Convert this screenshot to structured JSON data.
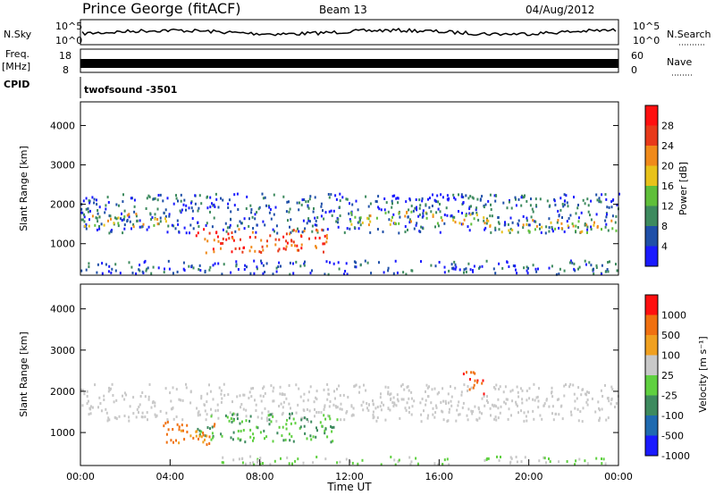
{
  "header": {
    "station": "Prince George (fitACF)",
    "beam": "Beam 13",
    "date": "04/Aug/2012"
  },
  "top_panels": {
    "nsky_label": "N.Sky",
    "nsky_ticks": [
      "10^5",
      "10^0"
    ],
    "nsearch_label": "N.Search",
    "nsearch_ticks": [
      "10^5",
      "10^0"
    ],
    "freq_label": "Freq.",
    "freq_unit": "[MHz]",
    "freq_ticks": [
      "18",
      "8"
    ],
    "nave_label": "Nave",
    "nave_ticks": [
      "60",
      "0"
    ],
    "cpid_label": "CPID",
    "cpid_value": "twofsound -3501"
  },
  "chart_data": [
    {
      "type": "heatmap",
      "panel": "power",
      "ylabel": "Slant Range [km]",
      "ytick_labels": [
        "1000",
        "2000",
        "3000",
        "4000"
      ],
      "ylim": [
        200,
        4600
      ],
      "xlim_hours": [
        0,
        24
      ],
      "colorbar_label": "Power [dB]",
      "colorbar_ticks": [
        "4",
        "8",
        "12",
        "16",
        "20",
        "24",
        "28"
      ],
      "colorbar_colors": [
        "#1a1aff",
        "#1f4fa8",
        "#3d8a5e",
        "#5fbf3a",
        "#e8c21a",
        "#f08a1a",
        "#e83a1a",
        "#ff1010"
      ],
      "regions": [
        {
          "t0": 0,
          "t1": 24,
          "r0": 1300,
          "r1": 2300,
          "level": "low"
        },
        {
          "t0": 0,
          "t1": 4,
          "r0": 1450,
          "r1": 1800,
          "level": "mid"
        },
        {
          "t0": 5,
          "t1": 11,
          "r0": 800,
          "r1": 1400,
          "level": "high"
        },
        {
          "t0": 12,
          "t1": 18,
          "r0": 1500,
          "r1": 1850,
          "level": "mid"
        },
        {
          "t0": 18,
          "t1": 24,
          "r0": 1300,
          "r1": 1650,
          "level": "mid"
        },
        {
          "t0": 0,
          "t1": 24,
          "r0": 250,
          "r1": 600,
          "level": "low"
        }
      ]
    },
    {
      "type": "heatmap",
      "panel": "velocity",
      "ylabel": "Slant Range [km]",
      "ytick_labels": [
        "1000",
        "2000",
        "3000",
        "4000"
      ],
      "ylim": [
        200,
        4600
      ],
      "xlim_hours": [
        0,
        24
      ],
      "xlabel": "Time UT",
      "xtick_labels": [
        "00:00",
        "04:00",
        "08:00",
        "12:00",
        "16:00",
        "20:00",
        "00:00"
      ],
      "colorbar_label": "Velocity [m s⁻¹]",
      "colorbar_ticks": [
        "1000",
        "500",
        "100",
        "25",
        "-25",
        "-100",
        "-500",
        "-1000"
      ],
      "colorbar_colors": [
        "#1a1aff",
        "#1f6ab0",
        "#3d8a5e",
        "#5fd040",
        "#c8c8c8",
        "#f0a020",
        "#f07010",
        "#ff1010"
      ],
      "regions": [
        {
          "t0": 0,
          "t1": 24,
          "r0": 1300,
          "r1": 2200,
          "level": "ground"
        },
        {
          "t0": 5,
          "t1": 11.5,
          "r0": 800,
          "r1": 1500,
          "level": "toward"
        },
        {
          "t0": 3.5,
          "t1": 6,
          "r0": 700,
          "r1": 1300,
          "level": "away"
        },
        {
          "t0": 17,
          "t1": 18,
          "r0": 1900,
          "r1": 2500,
          "level": "away_strong"
        },
        {
          "t0": 6,
          "t1": 24,
          "r0": 250,
          "r1": 450,
          "level": "toward_light"
        }
      ]
    }
  ]
}
